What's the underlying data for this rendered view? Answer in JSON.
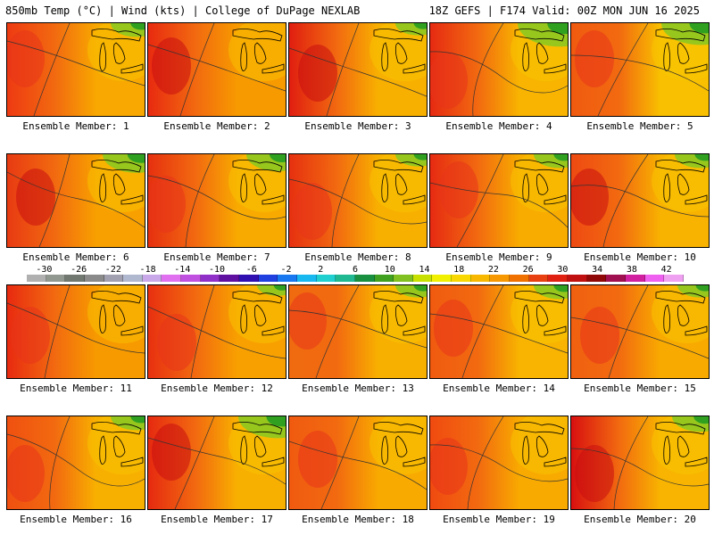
{
  "header": {
    "left": "850mb Temp (°C) | Wind (kts) | College of DuPage NEXLAB",
    "right": "18Z GEFS | F174 Valid: 00Z MON JUN 16 2025"
  },
  "members": [
    {
      "label": "Ensemble Member: 1",
      "west": "#ee3a12",
      "east": "#f8a800",
      "ne_green": 0.3,
      "west_dark": false
    },
    {
      "label": "Ensemble Member: 2",
      "west": "#e82a10",
      "east": "#f79a00",
      "ne_green": 0.0,
      "west_dark": true
    },
    {
      "label": "Ensemble Member: 3",
      "west": "#e01e10",
      "east": "#f8b000",
      "ne_green": 0.2,
      "west_dark": true
    },
    {
      "label": "Ensemble Member: 4",
      "west": "#e62a12",
      "east": "#f8b400",
      "ne_green": 0.9,
      "west_dark": false
    },
    {
      "label": "Ensemble Member: 5",
      "west": "#f05a10",
      "east": "#f8c000",
      "ne_green": 0.8,
      "west_dark": false
    },
    {
      "label": "Ensemble Member: 6",
      "west": "#e83a12",
      "east": "#f8a000",
      "ne_green": 0.6,
      "west_dark": true
    },
    {
      "label": "Ensemble Member: 7",
      "west": "#e63010",
      "east": "#f8aa00",
      "ne_green": 0.5,
      "west_dark": false
    },
    {
      "label": "Ensemble Member: 8",
      "west": "#e63010",
      "east": "#f8b000",
      "ne_green": 0.2,
      "west_dark": false
    },
    {
      "label": "Ensemble Member: 9",
      "west": "#e62a12",
      "east": "#f8ac00",
      "ne_green": 0.3,
      "west_dark": false
    },
    {
      "label": "Ensemble Member: 10",
      "west": "#ee4a12",
      "east": "#f8b200",
      "ne_green": 0.3,
      "west_dark": true
    },
    {
      "label": "Ensemble Member: 11",
      "west": "#e82a10",
      "east": "#f79a00",
      "ne_green": 0.0,
      "west_dark": false
    },
    {
      "label": "Ensemble Member: 12",
      "west": "#e83010",
      "east": "#f8a000",
      "ne_green": 0.1,
      "west_dark": false
    },
    {
      "label": "Ensemble Member: 13",
      "west": "#f06a10",
      "east": "#f8b000",
      "ne_green": 0.2,
      "west_dark": false
    },
    {
      "label": "Ensemble Member: 14",
      "west": "#f05a10",
      "east": "#f8b400",
      "ne_green": 0.3,
      "west_dark": false
    },
    {
      "label": "Ensemble Member: 15",
      "west": "#f06010",
      "east": "#f8aa00",
      "ne_green": 0.2,
      "west_dark": false
    },
    {
      "label": "Ensemble Member: 16",
      "west": "#f05010",
      "east": "#f8b000",
      "ne_green": 0.3,
      "west_dark": false
    },
    {
      "label": "Ensemble Member: 17",
      "west": "#e62a10",
      "east": "#f8b000",
      "ne_green": 0.8,
      "west_dark": true
    },
    {
      "label": "Ensemble Member: 18",
      "west": "#f05a10",
      "east": "#f8aa00",
      "ne_green": 0.0,
      "west_dark": false
    },
    {
      "label": "Ensemble Member: 19",
      "west": "#f04a10",
      "east": "#f8aa00",
      "ne_green": 0.0,
      "west_dark": false
    },
    {
      "label": "Ensemble Member: 20",
      "west": "#d81010",
      "east": "#f8b400",
      "ne_green": 0.4,
      "west_dark": true
    }
  ],
  "colorbar": {
    "labels": [
      "-30",
      "-26",
      "-22",
      "-18",
      "-14",
      "-10",
      "-6",
      "-2",
      "2",
      "6",
      "10",
      "14",
      "18",
      "22",
      "26",
      "30",
      "34",
      "38",
      "42"
    ],
    "colors": [
      "#b0b0b0",
      "#909890",
      "#707870",
      "#8a8a8a",
      "#a0a0b0",
      "#b0b8d0",
      "#c8a8e8",
      "#e070f0",
      "#c050e0",
      "#9030c8",
      "#6010a0",
      "#3010b0",
      "#2040e0",
      "#1878f0",
      "#18b8f0",
      "#20d0d0",
      "#20b890",
      "#189040",
      "#40a020",
      "#80c020",
      "#c8e000",
      "#f0f000",
      "#f8d800",
      "#f8b800",
      "#f89800",
      "#f07000",
      "#e84010",
      "#e02010",
      "#c01010",
      "#900808",
      "#a01050",
      "#d020a0",
      "#f060f0",
      "#f0a0f0"
    ]
  }
}
